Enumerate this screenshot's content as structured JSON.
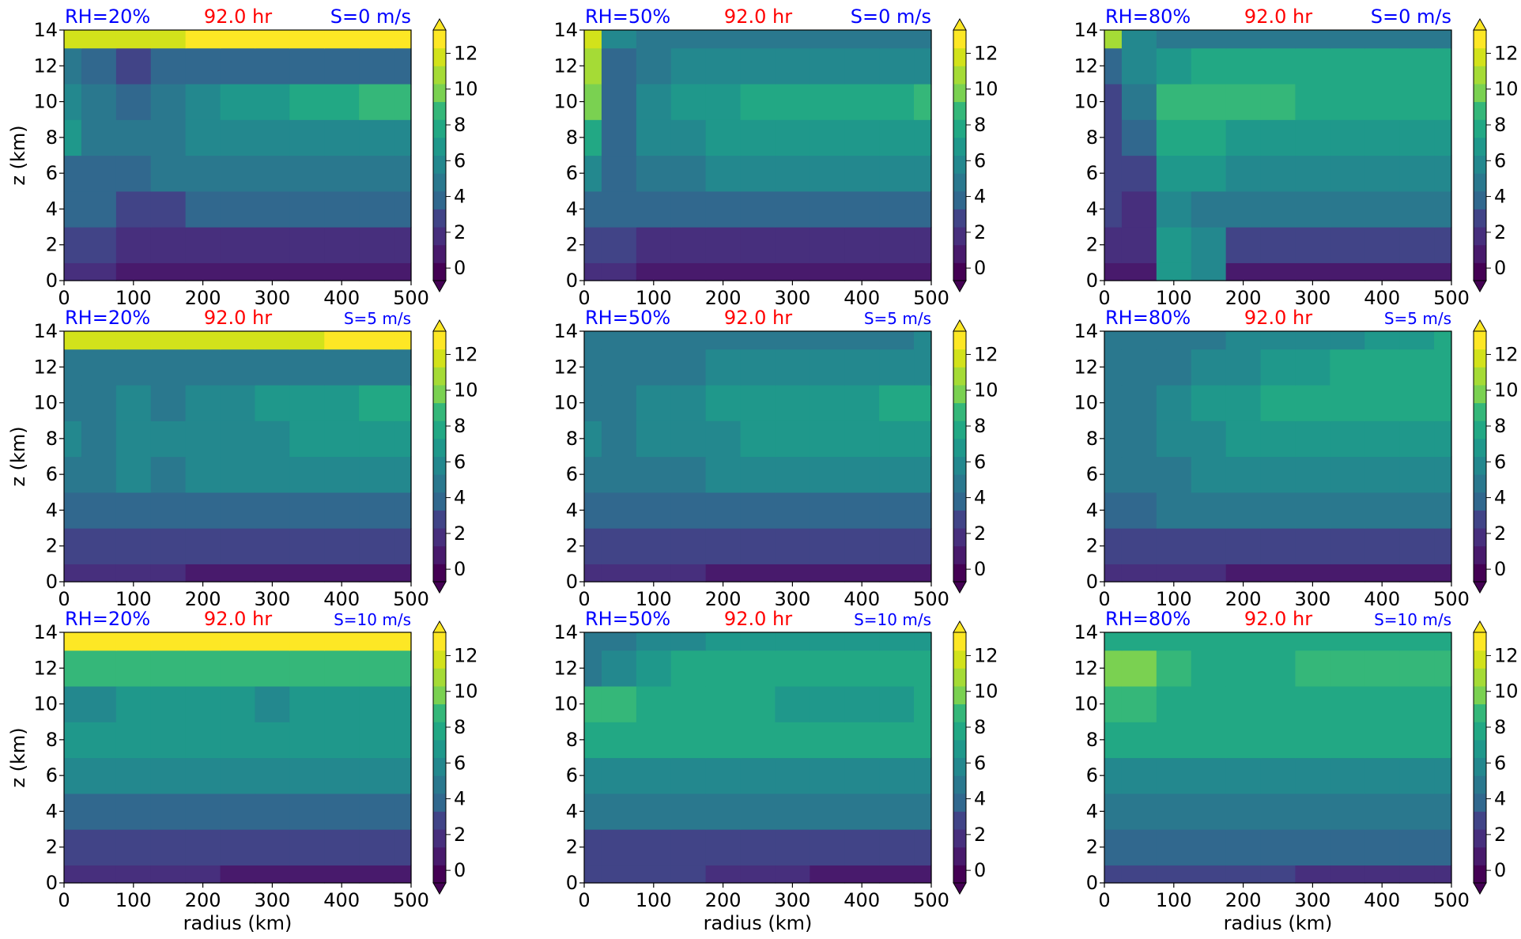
{
  "figure": {
    "colormap": "viridis",
    "colorbar_ticks": [
      "0",
      "2",
      "4",
      "6",
      "8",
      "10",
      "12"
    ],
    "colorbar_levels": [
      0,
      1,
      2,
      3,
      4,
      5,
      6,
      7,
      8,
      9,
      10,
      11,
      12,
      13
    ],
    "colors": {
      "rh_label": "#0000ff",
      "shear_label": "#0000ff",
      "time_label": "#ff0000"
    }
  },
  "chart_data": [
    {
      "type": "heatmap",
      "panel": "r1c1",
      "rh_label": "RH=20%",
      "time_label": "92.0 hr",
      "shear_label": "S=0 m/s",
      "xlabel": "",
      "ylabel": "z (km)",
      "xlim": [
        0,
        500
      ],
      "ylim": [
        0,
        14
      ],
      "x_ticks": [
        "0",
        "100",
        "200",
        "300",
        "400",
        "500"
      ],
      "y_ticks": [
        "0",
        "2",
        "4",
        "6",
        "8",
        "10",
        "12",
        "14"
      ],
      "x": [
        0,
        50,
        100,
        150,
        200,
        250,
        300,
        350,
        400,
        450,
        500
      ],
      "z": [
        0,
        2,
        4,
        6,
        8,
        10,
        12,
        14
      ],
      "values": [
        [
          2,
          2,
          1,
          1,
          1,
          1,
          1,
          1,
          1,
          1,
          1
        ],
        [
          3,
          3,
          2,
          2,
          2,
          2,
          2,
          2,
          2,
          2,
          2
        ],
        [
          4,
          4,
          3,
          3,
          4,
          4,
          4,
          4,
          4,
          4,
          4
        ],
        [
          4,
          4,
          4,
          5,
          5,
          5,
          5,
          5,
          5,
          5,
          5
        ],
        [
          7,
          5,
          5,
          5,
          6,
          6,
          6,
          6,
          6,
          6,
          6
        ],
        [
          6,
          5,
          4,
          5,
          6,
          7,
          7,
          8,
          8,
          9,
          9
        ],
        [
          5,
          4,
          3,
          4,
          4,
          4,
          4,
          4,
          4,
          4,
          4
        ],
        [
          12,
          12,
          12,
          12,
          13,
          13,
          13,
          13,
          13,
          13,
          13
        ]
      ]
    },
    {
      "type": "heatmap",
      "panel": "r1c2",
      "rh_label": "RH=50%",
      "time_label": "92.0 hr",
      "shear_label": "S=0 m/s",
      "xlabel": "",
      "ylabel": "",
      "xlim": [
        0,
        500
      ],
      "ylim": [
        0,
        14
      ],
      "x_ticks": [
        "0",
        "100",
        "200",
        "300",
        "400",
        "500"
      ],
      "y_ticks": [
        "0",
        "2",
        "4",
        "6",
        "8",
        "10",
        "12",
        "14"
      ],
      "x": [
        0,
        50,
        100,
        150,
        200,
        250,
        300,
        350,
        400,
        450,
        500
      ],
      "z": [
        0,
        2,
        4,
        6,
        8,
        10,
        12,
        14
      ],
      "values": [
        [
          2,
          2,
          1,
          1,
          1,
          1,
          1,
          1,
          1,
          1,
          1
        ],
        [
          3,
          3,
          2,
          2,
          2,
          2,
          2,
          2,
          2,
          2,
          2
        ],
        [
          4,
          4,
          4,
          4,
          4,
          4,
          4,
          4,
          4,
          4,
          4
        ],
        [
          6,
          4,
          5,
          5,
          6,
          6,
          6,
          6,
          6,
          6,
          6
        ],
        [
          8,
          4,
          6,
          6,
          7,
          7,
          7,
          7,
          7,
          7,
          7
        ],
        [
          10,
          4,
          6,
          7,
          7,
          8,
          8,
          8,
          8,
          8,
          9
        ],
        [
          11,
          4,
          5,
          6,
          6,
          6,
          6,
          6,
          6,
          6,
          6
        ],
        [
          12,
          6,
          5,
          5,
          5,
          5,
          5,
          5,
          5,
          5,
          5
        ]
      ]
    },
    {
      "type": "heatmap",
      "panel": "r1c3",
      "rh_label": "RH=80%",
      "time_label": "92.0 hr",
      "shear_label": "S=0 m/s",
      "xlabel": "",
      "ylabel": "",
      "xlim": [
        0,
        500
      ],
      "ylim": [
        0,
        14
      ],
      "x_ticks": [
        "0",
        "100",
        "200",
        "300",
        "400",
        "500"
      ],
      "y_ticks": [
        "0",
        "2",
        "4",
        "6",
        "8",
        "10",
        "12",
        "14"
      ],
      "x": [
        0,
        50,
        100,
        150,
        200,
        250,
        300,
        350,
        400,
        450,
        500
      ],
      "z": [
        0,
        2,
        4,
        6,
        8,
        10,
        12,
        14
      ],
      "values": [
        [
          1,
          1,
          7,
          6,
          1,
          1,
          1,
          1,
          1,
          1,
          1
        ],
        [
          2,
          2,
          7,
          6,
          3,
          3,
          3,
          3,
          3,
          3,
          3
        ],
        [
          3,
          2,
          6,
          5,
          5,
          5,
          5,
          5,
          5,
          5,
          5
        ],
        [
          3,
          3,
          7,
          7,
          6,
          6,
          6,
          6,
          6,
          6,
          6
        ],
        [
          3,
          4,
          8,
          8,
          7,
          7,
          7,
          7,
          7,
          7,
          7
        ],
        [
          3,
          5,
          9,
          9,
          9,
          9,
          8,
          8,
          8,
          8,
          8
        ],
        [
          4,
          6,
          7,
          8,
          8,
          8,
          8,
          8,
          8,
          8,
          8
        ],
        [
          11,
          6,
          5,
          5,
          5,
          5,
          5,
          5,
          5,
          5,
          5
        ]
      ]
    },
    {
      "type": "heatmap",
      "panel": "r2c1",
      "rh_label": "RH=20%",
      "time_label": "92.0 hr",
      "shear_label": "S=5 m/s",
      "xlabel": "",
      "ylabel": "z (km)",
      "xlim": [
        0,
        500
      ],
      "ylim": [
        0,
        14
      ],
      "x_ticks": [
        "0",
        "100",
        "200",
        "300",
        "400",
        "500"
      ],
      "y_ticks": [
        "0",
        "2",
        "4",
        "6",
        "8",
        "10",
        "12",
        "14"
      ],
      "x": [
        0,
        50,
        100,
        150,
        200,
        250,
        300,
        350,
        400,
        450,
        500
      ],
      "z": [
        0,
        2,
        4,
        6,
        8,
        10,
        12,
        14
      ],
      "values": [
        [
          2,
          2,
          2,
          2,
          1,
          1,
          1,
          1,
          1,
          1,
          1
        ],
        [
          3,
          3,
          3,
          3,
          3,
          3,
          3,
          3,
          3,
          3,
          3
        ],
        [
          4,
          4,
          4,
          4,
          4,
          4,
          4,
          4,
          4,
          4,
          4
        ],
        [
          5,
          5,
          6,
          5,
          6,
          6,
          6,
          6,
          6,
          6,
          6
        ],
        [
          6,
          5,
          6,
          6,
          6,
          6,
          6,
          7,
          7,
          7,
          7
        ],
        [
          5,
          5,
          6,
          5,
          6,
          6,
          7,
          7,
          7,
          8,
          8
        ],
        [
          5,
          5,
          5,
          5,
          5,
          5,
          5,
          5,
          5,
          5,
          5
        ],
        [
          12,
          12,
          12,
          12,
          12,
          12,
          12,
          12,
          13,
          13,
          13
        ]
      ]
    },
    {
      "type": "heatmap",
      "panel": "r2c2",
      "rh_label": "RH=50%",
      "time_label": "92.0 hr",
      "shear_label": "S=5 m/s",
      "xlabel": "",
      "ylabel": "",
      "xlim": [
        0,
        500
      ],
      "ylim": [
        0,
        14
      ],
      "x_ticks": [
        "0",
        "100",
        "200",
        "300",
        "400",
        "500"
      ],
      "y_ticks": [
        "0",
        "2",
        "4",
        "6",
        "8",
        "10",
        "12",
        "14"
      ],
      "x": [
        0,
        50,
        100,
        150,
        200,
        250,
        300,
        350,
        400,
        450,
        500
      ],
      "z": [
        0,
        2,
        4,
        6,
        8,
        10,
        12,
        14
      ],
      "values": [
        [
          2,
          2,
          2,
          2,
          1,
          1,
          1,
          1,
          1,
          1,
          1
        ],
        [
          3,
          3,
          3,
          3,
          3,
          3,
          3,
          3,
          3,
          3,
          3
        ],
        [
          4,
          4,
          4,
          4,
          4,
          4,
          4,
          4,
          4,
          4,
          4
        ],
        [
          5,
          5,
          5,
          5,
          6,
          6,
          6,
          6,
          6,
          6,
          6
        ],
        [
          6,
          5,
          6,
          6,
          6,
          7,
          7,
          7,
          7,
          7,
          7
        ],
        [
          5,
          5,
          6,
          6,
          7,
          7,
          7,
          7,
          7,
          8,
          8
        ],
        [
          5,
          5,
          5,
          5,
          6,
          6,
          6,
          6,
          6,
          6,
          6
        ],
        [
          5,
          5,
          5,
          5,
          5,
          5,
          5,
          5,
          5,
          5,
          6
        ]
      ]
    },
    {
      "type": "heatmap",
      "panel": "r2c3",
      "rh_label": "RH=80%",
      "time_label": "92.0 hr",
      "shear_label": "S=5 m/s",
      "xlabel": "",
      "ylabel": "",
      "xlim": [
        0,
        500
      ],
      "ylim": [
        0,
        14
      ],
      "x_ticks": [
        "0",
        "100",
        "200",
        "300",
        "400",
        "500"
      ],
      "y_ticks": [
        "0",
        "2",
        "4",
        "6",
        "8",
        "10",
        "12",
        "14"
      ],
      "x": [
        0,
        50,
        100,
        150,
        200,
        250,
        300,
        350,
        400,
        450,
        500
      ],
      "z": [
        0,
        2,
        4,
        6,
        8,
        10,
        12,
        14
      ],
      "values": [
        [
          2,
          2,
          2,
          2,
          1,
          1,
          1,
          1,
          1,
          1,
          1
        ],
        [
          3,
          3,
          3,
          3,
          3,
          3,
          3,
          3,
          3,
          3,
          3
        ],
        [
          4,
          4,
          5,
          5,
          5,
          5,
          5,
          5,
          5,
          5,
          5
        ],
        [
          5,
          5,
          5,
          6,
          6,
          6,
          6,
          6,
          6,
          6,
          6
        ],
        [
          5,
          5,
          6,
          6,
          7,
          7,
          7,
          7,
          7,
          7,
          7
        ],
        [
          5,
          5,
          6,
          7,
          7,
          8,
          8,
          8,
          8,
          8,
          8
        ],
        [
          5,
          5,
          5,
          6,
          6,
          7,
          7,
          8,
          8,
          8,
          8
        ],
        [
          5,
          5,
          5,
          5,
          6,
          6,
          6,
          6,
          7,
          7,
          8
        ]
      ]
    },
    {
      "type": "heatmap",
      "panel": "r3c1",
      "rh_label": "RH=20%",
      "time_label": "92.0 hr",
      "shear_label": "S=10 m/s",
      "xlabel": "radius (km)",
      "ylabel": "z (km)",
      "xlim": [
        0,
        500
      ],
      "ylim": [
        0,
        14
      ],
      "x_ticks": [
        "0",
        "100",
        "200",
        "300",
        "400",
        "500"
      ],
      "y_ticks": [
        "0",
        "2",
        "4",
        "6",
        "8",
        "10",
        "12",
        "14"
      ],
      "x": [
        0,
        50,
        100,
        150,
        200,
        250,
        300,
        350,
        400,
        450,
        500
      ],
      "z": [
        0,
        2,
        4,
        6,
        8,
        10,
        12,
        14
      ],
      "values": [
        [
          2,
          2,
          2,
          2,
          2,
          1,
          1,
          1,
          1,
          1,
          1
        ],
        [
          3,
          3,
          3,
          3,
          3,
          3,
          3,
          3,
          3,
          3,
          3
        ],
        [
          4,
          4,
          4,
          4,
          4,
          4,
          4,
          4,
          4,
          4,
          4
        ],
        [
          6,
          6,
          6,
          6,
          6,
          6,
          6,
          6,
          6,
          6,
          6
        ],
        [
          7,
          7,
          7,
          7,
          7,
          7,
          7,
          7,
          7,
          7,
          7
        ],
        [
          6,
          6,
          7,
          7,
          7,
          7,
          6,
          7,
          7,
          7,
          7
        ],
        [
          9,
          9,
          9,
          9,
          9,
          9,
          9,
          9,
          9,
          9,
          9
        ],
        [
          13,
          13,
          13,
          13,
          13,
          13,
          13,
          13,
          13,
          13,
          13
        ]
      ]
    },
    {
      "type": "heatmap",
      "panel": "r3c2",
      "rh_label": "RH=50%",
      "time_label": "92.0 hr",
      "shear_label": "S=10 m/s",
      "xlabel": "radius (km)",
      "ylabel": "",
      "xlim": [
        0,
        500
      ],
      "ylim": [
        0,
        14
      ],
      "x_ticks": [
        "0",
        "100",
        "200",
        "300",
        "400",
        "500"
      ],
      "y_ticks": [
        "0",
        "2",
        "4",
        "6",
        "8",
        "10",
        "12",
        "14"
      ],
      "x": [
        0,
        50,
        100,
        150,
        200,
        250,
        300,
        350,
        400,
        450,
        500
      ],
      "z": [
        0,
        2,
        4,
        6,
        8,
        10,
        12,
        14
      ],
      "values": [
        [
          3,
          3,
          3,
          3,
          2,
          2,
          2,
          1,
          1,
          1,
          1
        ],
        [
          3,
          3,
          3,
          3,
          3,
          3,
          3,
          3,
          3,
          3,
          3
        ],
        [
          5,
          5,
          5,
          5,
          5,
          5,
          5,
          5,
          5,
          5,
          5
        ],
        [
          6,
          6,
          6,
          6,
          6,
          6,
          6,
          6,
          6,
          6,
          6
        ],
        [
          8,
          8,
          8,
          8,
          8,
          8,
          8,
          8,
          8,
          8,
          8
        ],
        [
          9,
          9,
          8,
          8,
          8,
          8,
          7,
          7,
          7,
          7,
          8
        ],
        [
          5,
          6,
          7,
          8,
          8,
          8,
          8,
          8,
          8,
          8,
          8
        ],
        [
          5,
          5,
          6,
          6,
          7,
          7,
          7,
          7,
          7,
          7,
          7
        ]
      ]
    },
    {
      "type": "heatmap",
      "panel": "r3c3",
      "rh_label": "RH=80%",
      "time_label": "92.0 hr",
      "shear_label": "S=10 m/s",
      "xlabel": "radius (km)",
      "ylabel": "",
      "xlim": [
        0,
        500
      ],
      "ylim": [
        0,
        14
      ],
      "x_ticks": [
        "0",
        "100",
        "200",
        "300",
        "400",
        "500"
      ],
      "y_ticks": [
        "0",
        "2",
        "4",
        "6",
        "8",
        "10",
        "12",
        "14"
      ],
      "x": [
        0,
        50,
        100,
        150,
        200,
        250,
        300,
        350,
        400,
        450,
        500
      ],
      "z": [
        0,
        2,
        4,
        6,
        8,
        10,
        12,
        14
      ],
      "values": [
        [
          3,
          3,
          3,
          3,
          3,
          3,
          2,
          2,
          2,
          2,
          2
        ],
        [
          4,
          4,
          4,
          4,
          4,
          4,
          4,
          4,
          4,
          4,
          4
        ],
        [
          5,
          5,
          5,
          5,
          5,
          5,
          5,
          5,
          5,
          5,
          5
        ],
        [
          6,
          6,
          6,
          6,
          6,
          6,
          6,
          6,
          6,
          6,
          6
        ],
        [
          8,
          8,
          8,
          8,
          8,
          8,
          8,
          8,
          8,
          8,
          8
        ],
        [
          9,
          9,
          8,
          8,
          8,
          8,
          8,
          8,
          8,
          8,
          8
        ],
        [
          10,
          10,
          9,
          8,
          8,
          8,
          9,
          9,
          9,
          9,
          9
        ],
        [
          8,
          8,
          8,
          8,
          8,
          8,
          8,
          8,
          8,
          8,
          8
        ]
      ]
    }
  ]
}
